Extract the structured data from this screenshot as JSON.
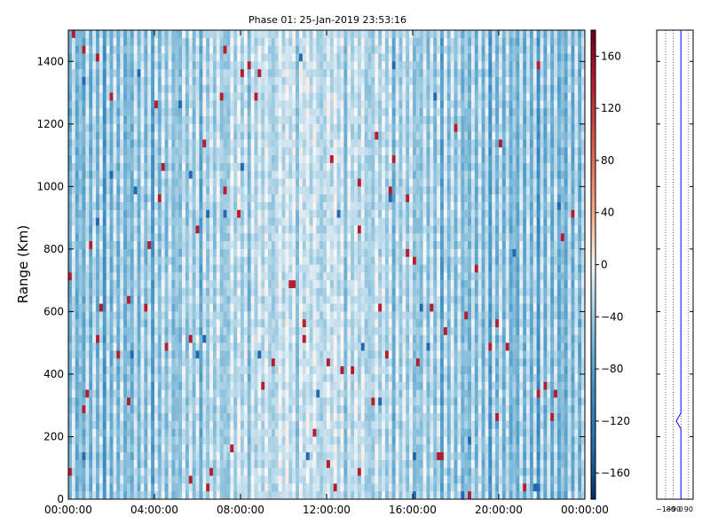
{
  "chart_data": {
    "type": "heatmap",
    "title": "Phase 01: 25-Jan-2019 23:53:16",
    "ylabel": "Range (Km)",
    "xlabel": "",
    "x_ticks": [
      "00:00:00",
      "04:00:00",
      "08:00:00",
      "12:00:00",
      "16:00:00",
      "20:00:00",
      "00:00:00"
    ],
    "y_ticks": [
      0,
      200,
      400,
      600,
      800,
      1000,
      1200,
      1400
    ],
    "ylim": [
      0,
      1500
    ],
    "colorbar": {
      "range": [
        -180,
        180
      ],
      "ticks": [
        -160,
        -120,
        -80,
        -40,
        0,
        40,
        80,
        120,
        160
      ],
      "tick_labels": [
        "−160",
        "−120",
        "−80",
        "−40",
        "0",
        "40",
        "80",
        "120",
        "160"
      ],
      "colormap": "RdBu_r"
    },
    "profile_panel": {
      "x_tick_labels": [
        "−180",
        "−90",
        "0",
        "90"
      ],
      "line_color": "#0000ff"
    },
    "colors": {
      "colormap_low": "#053061",
      "colormap_mid": "#f7f7f7",
      "colormap_high": "#67001f"
    }
  }
}
